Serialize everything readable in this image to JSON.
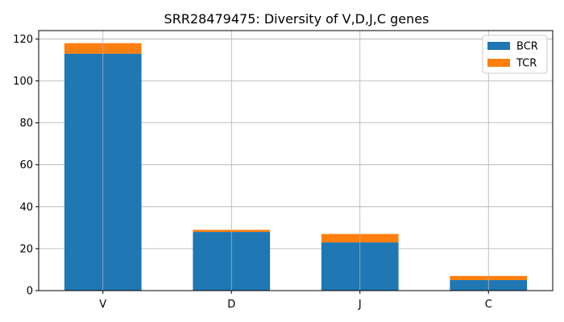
{
  "chart_data": {
    "type": "bar",
    "stacked": true,
    "title": "SRR28479475: Diversity of V,D,J,C genes",
    "xlabel": "",
    "ylabel": "",
    "categories": [
      "V",
      "D",
      "J",
      "C"
    ],
    "series": [
      {
        "name": "BCR",
        "values": [
          113,
          28,
          23,
          5
        ],
        "color": "#1f77b4"
      },
      {
        "name": "TCR",
        "values": [
          5,
          1,
          4,
          2
        ],
        "color": "#ff7f0e"
      }
    ],
    "ylim": [
      0,
      124
    ],
    "yticks": [
      0,
      20,
      40,
      60,
      80,
      100,
      120
    ],
    "grid": true,
    "legend_position": "top-right"
  }
}
